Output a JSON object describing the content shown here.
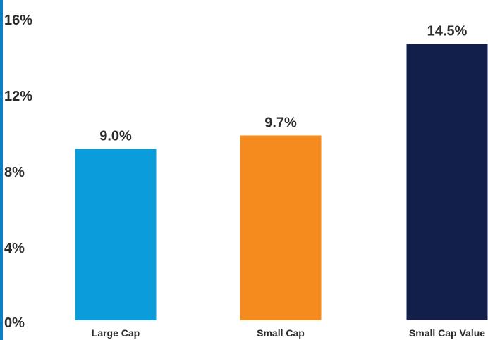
{
  "chart_data": {
    "type": "bar",
    "categories": [
      "Large Cap",
      "Small Cap",
      "Small Cap Value"
    ],
    "values": [
      9.0,
      9.7,
      14.5
    ],
    "data_labels": [
      "9.0%",
      "9.7%",
      "14.5%"
    ],
    "colors": [
      "#0b9ddb",
      "#f58a1f",
      "#131f4b"
    ],
    "yticks": [
      {
        "value": 0,
        "label": "0%"
      },
      {
        "value": 4,
        "label": "4%"
      },
      {
        "value": 8,
        "label": "8%"
      },
      {
        "value": 12,
        "label": "12%"
      },
      {
        "value": 16,
        "label": "16%"
      }
    ],
    "ylim": [
      0,
      16
    ],
    "grid": false,
    "legend": "none",
    "accent_color": "#0b7fc2"
  }
}
